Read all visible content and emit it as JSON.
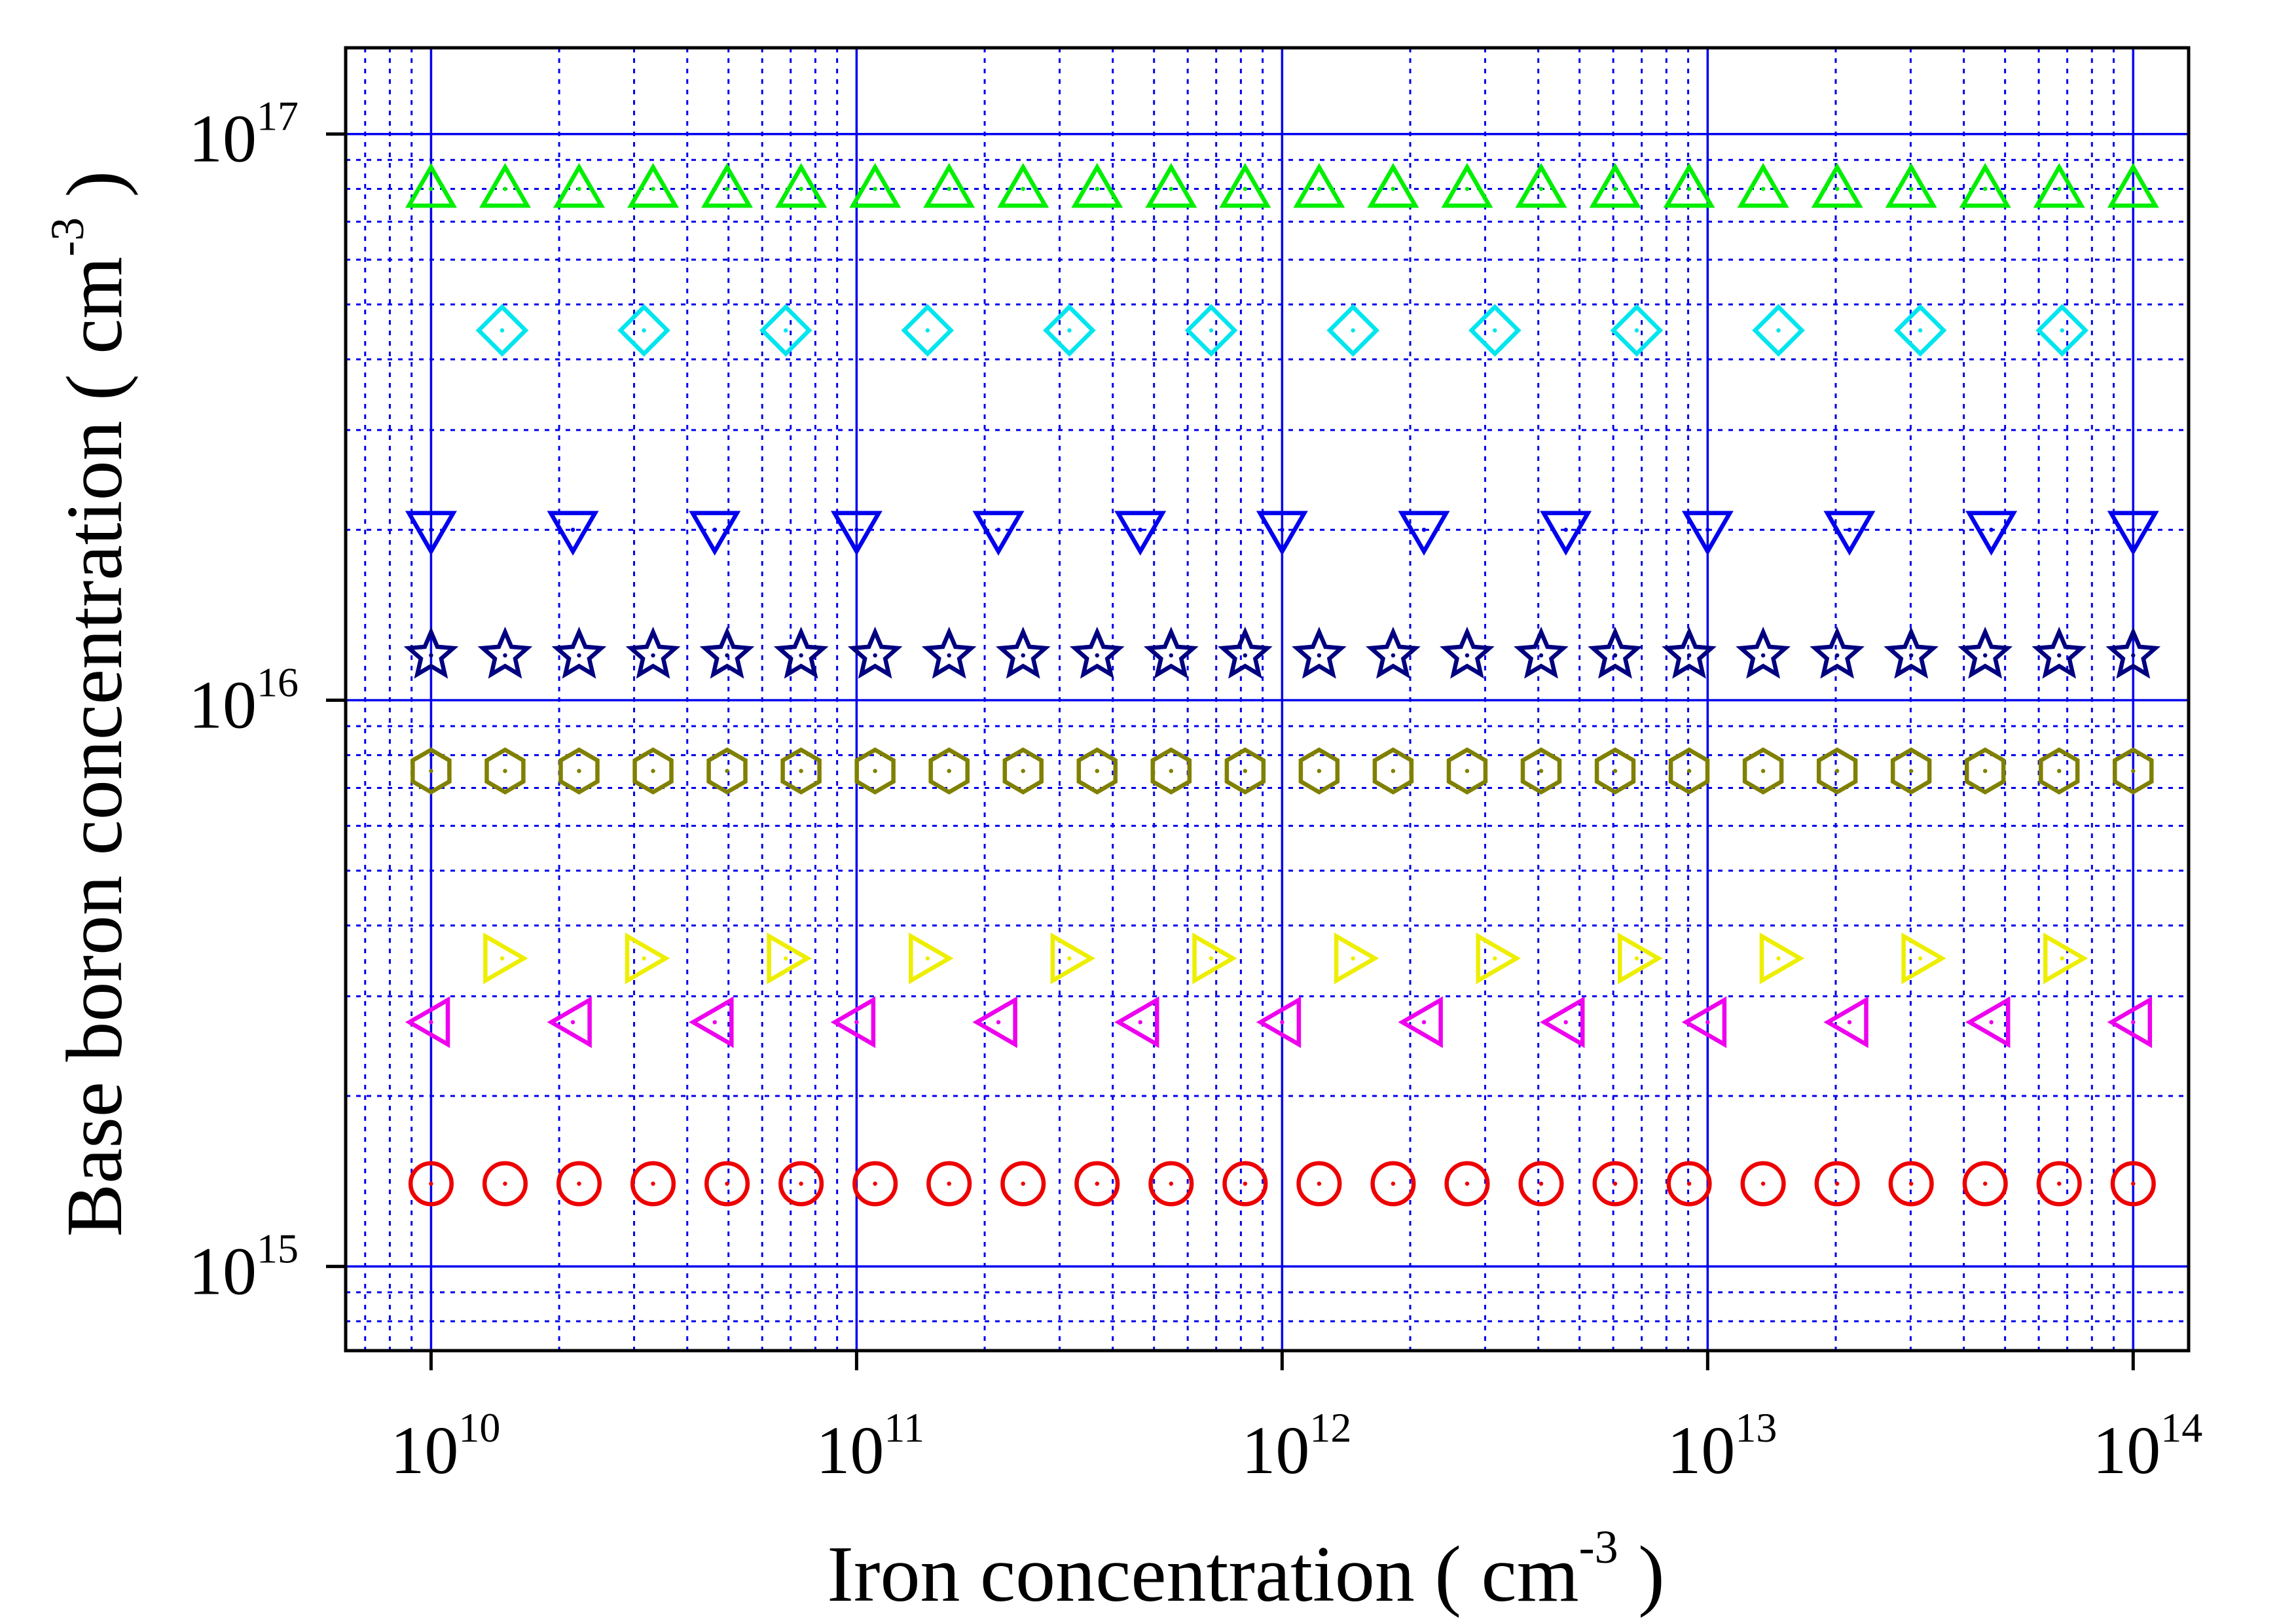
{
  "chart_data": {
    "type": "scatter",
    "xlabel": {
      "prefix": "Iron concentration  ( cm",
      "sup": "-3",
      "suffix": " )"
    },
    "ylabel": {
      "prefix": "Base boron concentration  ( cm",
      "sup": "-3",
      "suffix": " )"
    },
    "x_scale": "log",
    "y_scale": "log",
    "xlim": [
      6300000000.0,
      135000000000000.0
    ],
    "ylim": [
      710000000000000.0,
      1.42e+17
    ],
    "x_ticks": [
      {
        "base": "10",
        "exp": "10",
        "value": 10000000000.0
      },
      {
        "base": "10",
        "exp": "11",
        "value": 100000000000.0
      },
      {
        "base": "10",
        "exp": "12",
        "value": 1000000000000.0
      },
      {
        "base": "10",
        "exp": "13",
        "value": 10000000000000.0
      },
      {
        "base": "10",
        "exp": "14",
        "value": 100000000000000.0
      }
    ],
    "y_ticks": [
      {
        "base": "10",
        "exp": "15",
        "value": 1000000000000000.0
      },
      {
        "base": "10",
        "exp": "16",
        "value": 1e+16
      },
      {
        "base": "10",
        "exp": "17",
        "value": 1e+17
      }
    ],
    "grid": {
      "major": "solid",
      "minor": "dotted",
      "color": "#0000ee"
    },
    "series": [
      {
        "marker": "triangle-up",
        "color": "#00ee00",
        "y": 8e+16,
        "x_log_start": 10.0,
        "x_log_end": 14.0,
        "points": 24
      },
      {
        "marker": "diamond",
        "color": "#00e5ee",
        "y": 4.5e+16,
        "x_log_start": 10.167,
        "x_log_end": 13.833,
        "points": 12
      },
      {
        "marker": "triangle-down",
        "color": "#0000ee",
        "y": 2e+16,
        "x_log_start": 10.0,
        "x_log_end": 14.0,
        "points": 13
      },
      {
        "marker": "star",
        "color": "#000080",
        "y": 1.2e+16,
        "x_log_start": 10.0,
        "x_log_end": 14.0,
        "points": 24
      },
      {
        "marker": "hexagon",
        "color": "#808000",
        "y": 7500000000000000.0,
        "x_log_start": 10.0,
        "x_log_end": 14.0,
        "points": 24
      },
      {
        "marker": "triangle-right",
        "color": "#eeee00",
        "y": 3500000000000000.0,
        "x_log_start": 10.167,
        "x_log_end": 13.833,
        "points": 12
      },
      {
        "marker": "triangle-left",
        "color": "#ee00ee",
        "y": 2700000000000000.0,
        "x_log_start": 10.0,
        "x_log_end": 14.0,
        "points": 13
      },
      {
        "marker": "circle",
        "color": "#ee0000",
        "y": 1400000000000000.0,
        "x_log_start": 10.0,
        "x_log_end": 14.0,
        "points": 24
      }
    ]
  }
}
